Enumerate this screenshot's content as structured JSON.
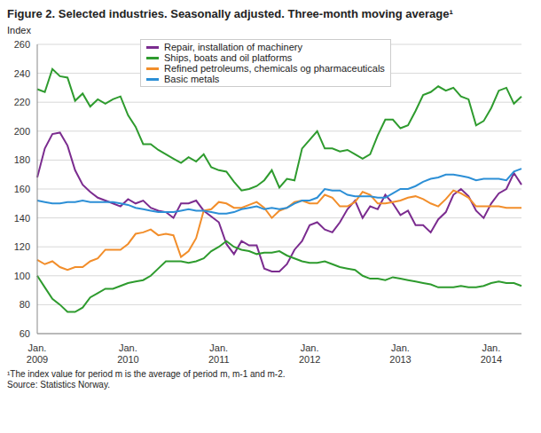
{
  "chart_data": {
    "type": "line",
    "title": "Figure 2. Selected industries. Seasonally adjusted. Three-month moving average¹",
    "y_label": "Index",
    "footnotes": [
      "¹The index value for period m is the average of period m, m-1 and m-2.",
      "Source: Statistics Norway."
    ],
    "categories": [
      "Jan. 2009",
      null,
      null,
      null,
      null,
      null,
      null,
      null,
      null,
      null,
      null,
      null,
      "Jan. 2010",
      null,
      null,
      null,
      null,
      null,
      null,
      null,
      null,
      null,
      null,
      null,
      "Jan. 2011",
      null,
      null,
      null,
      null,
      null,
      null,
      null,
      null,
      null,
      null,
      null,
      "Jan. 2012",
      null,
      null,
      null,
      null,
      null,
      null,
      null,
      null,
      null,
      null,
      null,
      "Jan. 2013",
      null,
      null,
      null,
      null,
      null,
      null,
      null,
      null,
      null,
      null,
      null,
      "Jan. 2014",
      null,
      null,
      null,
      null
    ],
    "ylim": [
      60,
      260
    ],
    "yticks": [
      60,
      80,
      100,
      120,
      140,
      160,
      180,
      200,
      220,
      240,
      260
    ],
    "grid": true,
    "legend": "top",
    "series": [
      {
        "name": "Repair, installation of machinery",
        "color": "#7b2c8f",
        "values": [
          168,
          188,
          198,
          199,
          190,
          173,
          163,
          158,
          154,
          152,
          150,
          148,
          153,
          150,
          152,
          147,
          145,
          144,
          140,
          150,
          150,
          152,
          145,
          141,
          137,
          122,
          115,
          124,
          121,
          121,
          105,
          103,
          103,
          108,
          118,
          124,
          135,
          137,
          132,
          130,
          137,
          146,
          152,
          140,
          148,
          146,
          156,
          150,
          142,
          145,
          135,
          135,
          130,
          139,
          144,
          156,
          160,
          155,
          145,
          140,
          150,
          157,
          160,
          171,
          163
        ]
      },
      {
        "name": "Ships, boats and oil platforms",
        "color": "#2e9b2e",
        "values": [
          229,
          227,
          243,
          238,
          237,
          221,
          226,
          217,
          222,
          219,
          222,
          224,
          211,
          203,
          191,
          191,
          187,
          184,
          181,
          178,
          182,
          179,
          184,
          175,
          173,
          172,
          165,
          159,
          160,
          162,
          166,
          173,
          161,
          167,
          166,
          188,
          194,
          200,
          188,
          188,
          186,
          187,
          184,
          181,
          184,
          197,
          208,
          208,
          202,
          204,
          214,
          225,
          227,
          231,
          228,
          230,
          224,
          222,
          204,
          207,
          216,
          228,
          230,
          219,
          224
        ]
      },
      {
        "name": "Refined petroleums, chemicals og pharmaceuticals",
        "color": "#f28e2b",
        "values": [
          111,
          108,
          110,
          106,
          104,
          106,
          106,
          110,
          112,
          118,
          118,
          118,
          122,
          129,
          130,
          132,
          128,
          129,
          128,
          113,
          117,
          126,
          145,
          146,
          151,
          150,
          147,
          147,
          149,
          151,
          147,
          140,
          145,
          147,
          151,
          152,
          150,
          150,
          156,
          154,
          148,
          148,
          151,
          158,
          156,
          150,
          150,
          151,
          152,
          154,
          155,
          153,
          150,
          148,
          153,
          159,
          157,
          154,
          148,
          148,
          148,
          148,
          147,
          147,
          147
        ]
      },
      {
        "name": "Basic metals",
        "color": "#2c8fd6",
        "values": [
          152,
          151,
          150,
          150,
          151,
          151,
          152,
          151,
          151,
          151,
          151,
          150,
          149,
          147,
          146,
          145,
          144,
          144,
          144,
          145,
          146,
          145,
          145,
          144,
          143,
          143,
          144,
          146,
          147,
          148,
          146,
          147,
          146,
          147,
          150,
          152,
          152,
          154,
          160,
          159,
          159,
          156,
          155,
          155,
          155,
          154,
          154,
          157,
          160,
          160,
          162,
          165,
          167,
          168,
          170,
          170,
          169,
          168,
          166,
          167,
          167,
          167,
          166,
          172,
          174
        ]
      },
      {
        "color": "#2e9b2e",
        "values": [
          100,
          92,
          84,
          80,
          75,
          75,
          78,
          85,
          88,
          91,
          91,
          93,
          95,
          96,
          97,
          100,
          105,
          110,
          110,
          110,
          109,
          110,
          112,
          117,
          120,
          124,
          120,
          118,
          117,
          115,
          116,
          116,
          117,
          114,
          112,
          110,
          109,
          109,
          110,
          108,
          106,
          105,
          104,
          100,
          98,
          98,
          97,
          99,
          98,
          97,
          96,
          95,
          94,
          92,
          92,
          92,
          93,
          92,
          92,
          93,
          95,
          96,
          95,
          95,
          93
        ]
      }
    ]
  }
}
